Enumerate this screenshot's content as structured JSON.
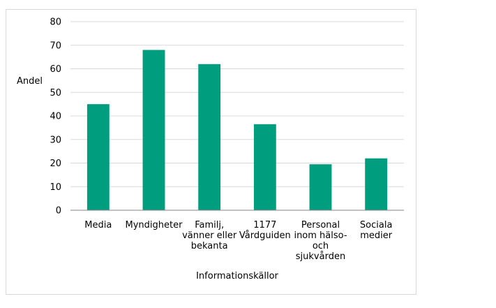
{
  "chart_data": {
    "type": "bar",
    "categories": [
      [
        "Media"
      ],
      [
        "Myndigheter"
      ],
      [
        "Familj,",
        "vänner eller",
        "bekanta"
      ],
      [
        "1177",
        "Vårdguiden"
      ],
      [
        "Personal",
        "inom hälso-",
        "och",
        "sjukvården"
      ],
      [
        "Sociala",
        "medier"
      ]
    ],
    "values": [
      45,
      68,
      62,
      36.5,
      19.5,
      22
    ],
    "xlabel": "Informationskällor",
    "ylabel": "Andel",
    "ylim": [
      0,
      80
    ],
    "yticks": [
      0,
      10,
      20,
      30,
      40,
      50,
      60,
      70,
      80
    ],
    "grid": true,
    "bar_color": "#009e7e",
    "grid_color": "#d9d9d9",
    "axis_color": "#868686"
  }
}
